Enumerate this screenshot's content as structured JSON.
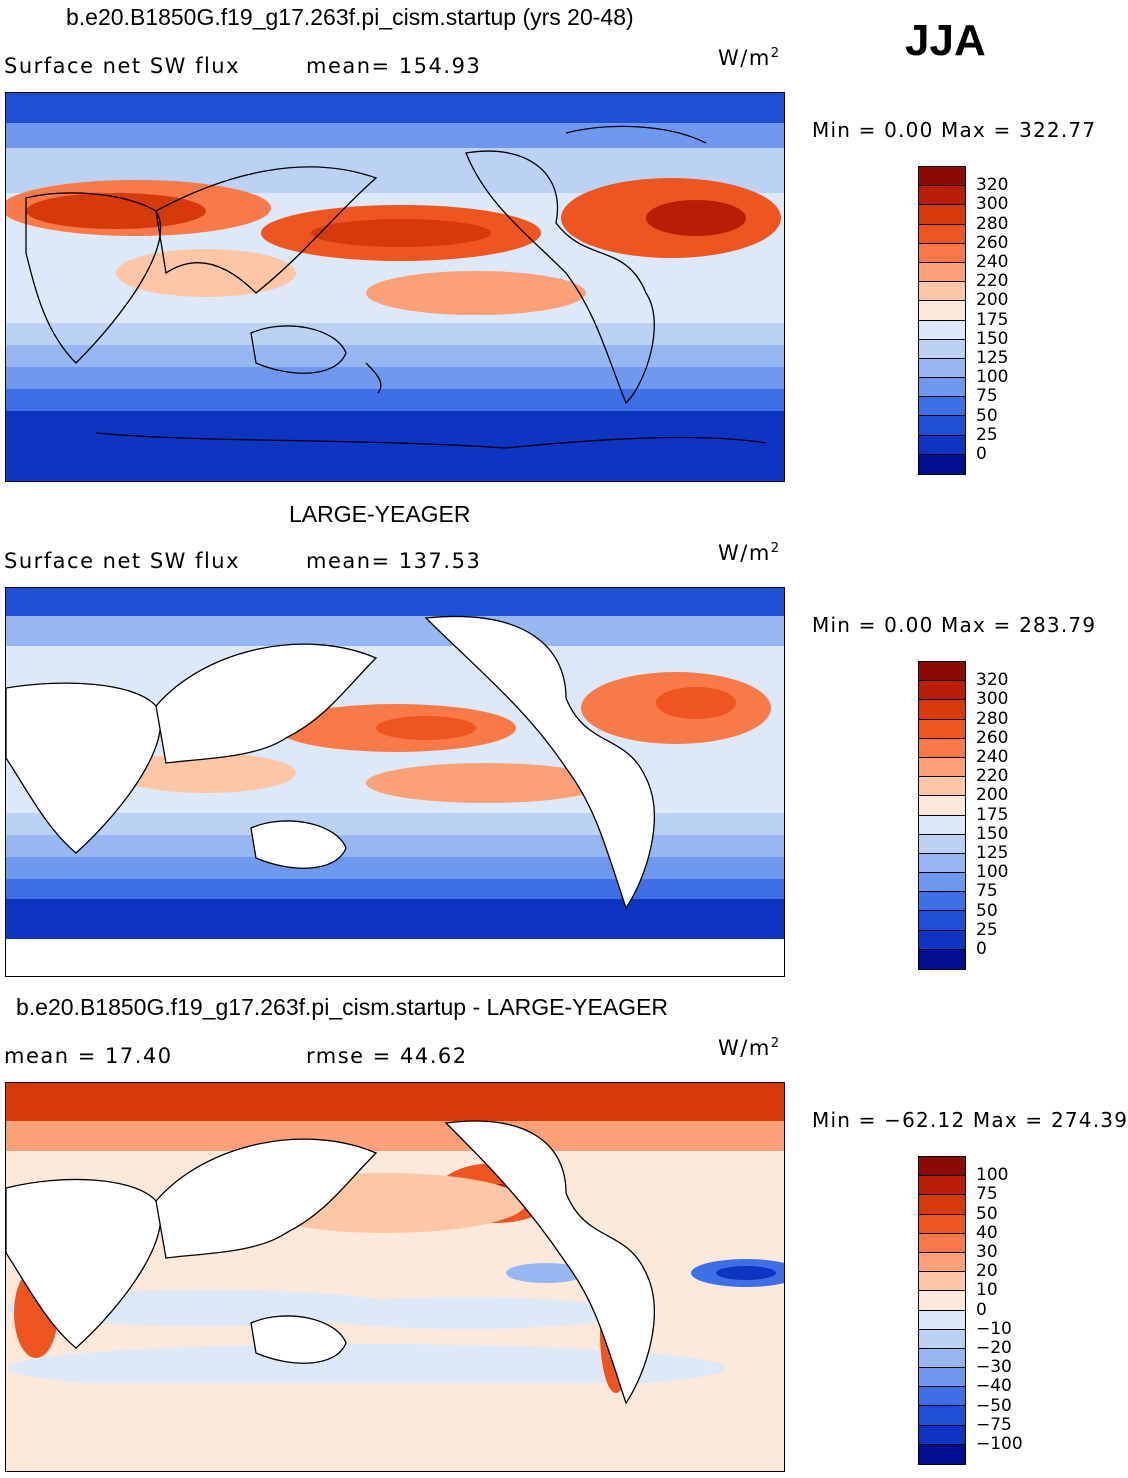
{
  "season": "JJA",
  "units_base": "W/m",
  "units_exp": "2",
  "panels": [
    {
      "title": "b.e20.B1850G.f19_g17.263f.pi_cism.startup (yrs 20-48)",
      "field": "Surface net SW flux",
      "stat": "mean=  154.93",
      "minmax": "Min  =    0.00  Max  =  322.77",
      "levels": [
        "320",
        "300",
        "280",
        "260",
        "240",
        "220",
        "200",
        "175",
        "150",
        "125",
        "100",
        "75",
        "50",
        "25",
        "0"
      ]
    },
    {
      "title": "LARGE-YEAGER",
      "field": "Surface net SW flux",
      "stat": "mean=  137.53",
      "minmax": "Min  =    0.00  Max  =  283.79",
      "levels": [
        "320",
        "300",
        "280",
        "260",
        "240",
        "220",
        "200",
        "175",
        "150",
        "125",
        "100",
        "75",
        "50",
        "25",
        "0"
      ]
    },
    {
      "title": "b.e20.B1850G.f19_g17.263f.pi_cism.startup - LARGE-YEAGER",
      "field": "mean  =    17.40",
      "stat": "rmse  =    44.62",
      "minmax": "Min  = −62.12  Max  =  274.39",
      "levels": [
        "100",
        "75",
        "50",
        "40",
        "30",
        "20",
        "10",
        "0",
        "−10",
        "−20",
        "−30",
        "−40",
        "−50",
        "−75",
        "−100"
      ]
    }
  ],
  "colors": {
    "abs": [
      "#8b0a05",
      "#b81d06",
      "#d63a0a",
      "#ee5520",
      "#f77a48",
      "#fba077",
      "#fdc6a6",
      "#fde9dc",
      "#dde8f8",
      "#bcd2f5",
      "#97b7f2",
      "#6f98ef",
      "#3f6fe6",
      "#1e4fd6",
      "#0d35c2",
      "#000f8f"
    ],
    "diff": [
      "#8b0a05",
      "#b81d06",
      "#d63a0a",
      "#ee5520",
      "#f77a48",
      "#fba077",
      "#fdc6a6",
      "#fde9dc",
      "#dde8f8",
      "#bcd2f5",
      "#97b7f2",
      "#6f98ef",
      "#3f6fe6",
      "#1e4fd6",
      "#0d35c2",
      "#000f8f"
    ]
  }
}
